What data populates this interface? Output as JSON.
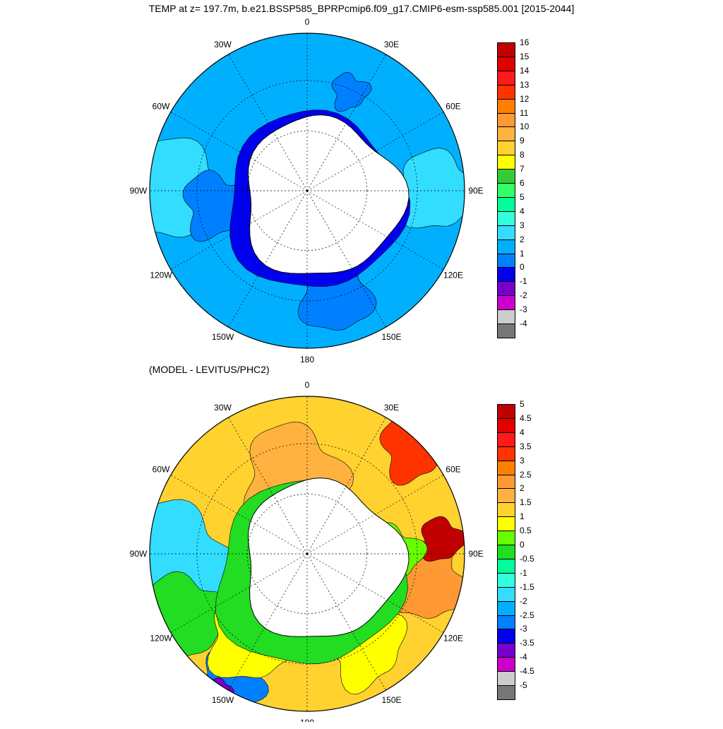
{
  "title": "TEMP at z= 197.7m, b.e21.BSSP585_BPRPcmip6.f09_g17.CMIP6-esm-ssp585.001 [2015-2044]",
  "subtitle": "(MODEL - LEVITUS/PHC2)",
  "lon_labels": [
    "0",
    "30E",
    "60E",
    "90E",
    "120E",
    "150E",
    "180",
    "150W",
    "120W",
    "90W",
    "60W",
    "30W"
  ],
  "top_colorbar": {
    "labels": [
      "16",
      "15",
      "14",
      "13",
      "12",
      "11",
      "10",
      "9",
      "8",
      "7",
      "6",
      "5",
      "4",
      "3",
      "2",
      "1",
      "0",
      "-1",
      "-2",
      "-3",
      "-4"
    ],
    "colors": [
      "#c00000",
      "#e00000",
      "#ff1a1a",
      "#ff3300",
      "#ff8000",
      "#ff9933",
      "#ffb240",
      "#ffd230",
      "#ffff00",
      "#33cc33",
      "#33ff66",
      "#00ff99",
      "#33ffdd",
      "#33ddff",
      "#00b0ff",
      "#0080ff",
      "#0000ee",
      "#7700cc",
      "#cc00cc",
      "#cccccc",
      "#777777"
    ]
  },
  "bottom_colorbar": {
    "labels": [
      "5",
      "4.5",
      "4",
      "3.5",
      "3",
      "2.5",
      "2",
      "1.5",
      "1",
      "0.5",
      "0",
      "-0.5",
      "-1",
      "-1.5",
      "-2",
      "-2.5",
      "-3",
      "-3.5",
      "-4",
      "-4.5",
      "-5"
    ],
    "colors": [
      "#c00000",
      "#e00000",
      "#ff1a1a",
      "#ff3300",
      "#ff8000",
      "#ff9933",
      "#ffb240",
      "#ffd230",
      "#ffff00",
      "#66ff00",
      "#22dd22",
      "#00ff99",
      "#33ffdd",
      "#33ddff",
      "#00b0ff",
      "#0080ff",
      "#0000ee",
      "#7700cc",
      "#cc00cc",
      "#cccccc",
      "#777777"
    ]
  }
}
